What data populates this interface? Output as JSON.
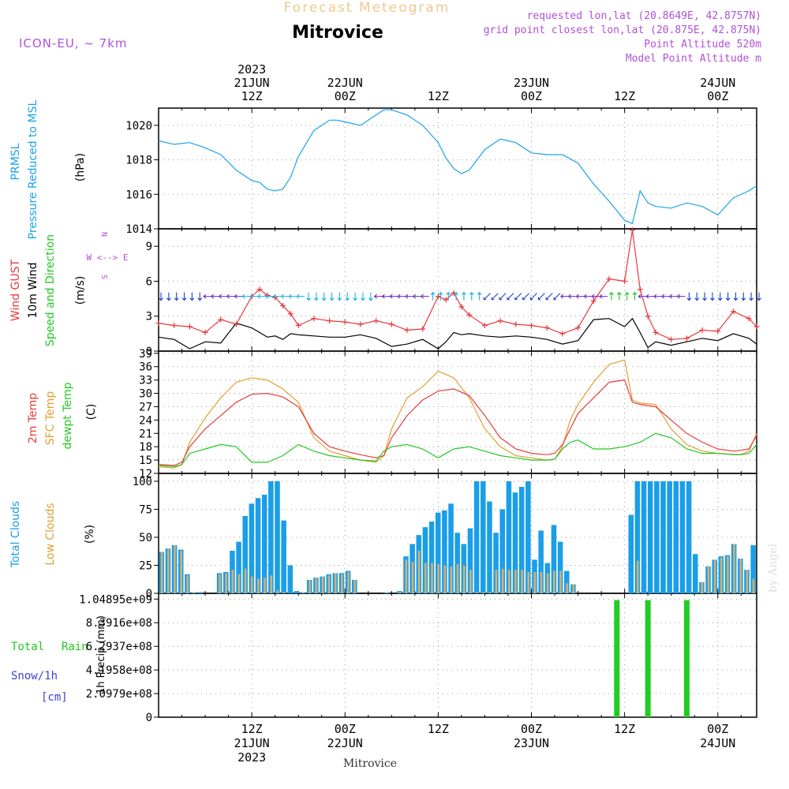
{
  "header": {
    "product": "Forecast Meteogram",
    "location": "Mitrovice",
    "model": "ICON-EU, ~ 7km",
    "requested": "requested lon,lat (20.8649E, 42.8757N)",
    "closest": "grid point closest lon,lat (20.875E, 42.875N)",
    "point_alt": "Point Altitude 520m",
    "model_alt": "Model Point Altitude m",
    "footer": "Mitrovice",
    "watermark": "by Angel"
  },
  "time_axis": {
    "top_ticks": [
      {
        "t": 12,
        "lines": [
          "2023",
          "21JUN",
          "12Z"
        ]
      },
      {
        "t": 24,
        "lines": [
          "22JUN",
          "00Z"
        ]
      },
      {
        "t": 36,
        "lines": [
          "12Z"
        ]
      },
      {
        "t": 48,
        "lines": [
          "23JUN",
          "00Z"
        ]
      },
      {
        "t": 60,
        "lines": [
          "12Z"
        ]
      },
      {
        "t": 72,
        "lines": [
          "24JUN",
          "00Z"
        ]
      }
    ],
    "bottom_ticks": [
      {
        "t": 12,
        "lines": [
          "12Z",
          "21JUN",
          "2023"
        ]
      },
      {
        "t": 24,
        "lines": [
          "00Z",
          "22JUN"
        ]
      },
      {
        "t": 36,
        "lines": [
          "12Z"
        ]
      },
      {
        "t": 48,
        "lines": [
          "00Z",
          "23JUN"
        ]
      },
      {
        "t": 60,
        "lines": [
          "12Z"
        ]
      },
      {
        "t": 72,
        "lines": [
          "00Z",
          "24JUN"
        ]
      }
    ]
  },
  "panels": {
    "pressure": {
      "labels": [
        "PRMSL",
        "Pressure Reduced to MSL",
        "(hPa)"
      ],
      "yticks": [
        "1020",
        "1018",
        "1016",
        "1014"
      ]
    },
    "wind": {
      "labels": [
        "Wind GUST",
        "10m Wind",
        "Speed and Direction",
        "(m/s)"
      ],
      "yticks": [
        "9",
        "6",
        "3",
        "0"
      ],
      "compass": [
        "N",
        "W <--> E",
        "S"
      ]
    },
    "temp": {
      "labels": [
        "2m Temp",
        "SFC Temp",
        "dewpt Temp",
        "(C)"
      ],
      "yticks": [
        "39",
        "36",
        "33",
        "30",
        "27",
        "24",
        "21",
        "18",
        "15",
        "12"
      ]
    },
    "clouds": {
      "labels": [
        "Total Clouds",
        "Low Clouds",
        "(%)"
      ],
      "yticks": [
        "100",
        "75",
        "50",
        "25",
        "0"
      ]
    },
    "precip": {
      "labels": [
        "Total",
        "Rain",
        "Snow/1h",
        "[cm]",
        "1h Precip (mm)"
      ],
      "yticks": [
        "1.04895e+09",
        "8.3916e+08",
        "6.2937e+08",
        "4.1958e+08",
        "2.0979e+08",
        "0"
      ]
    }
  },
  "colors": {
    "pressure": "#1aa3e8",
    "gust": "#e8383c",
    "wind": "#000000",
    "temp2m": "#e83c3c",
    "sfc": "#e0a030",
    "dew": "#22c822",
    "total_clouds": "#1a9ee8",
    "low_clouds": "#d4b070",
    "precip": "#22cc22",
    "label_purple": "#b050d8",
    "title_orange": "#f0c890"
  },
  "chart_data": [
    {
      "type": "line",
      "title": "PRMSL",
      "ylabel": "hPa",
      "ylim": [
        1014,
        1021
      ],
      "x_hours": [
        0,
        2,
        4,
        6,
        8,
        10,
        12,
        13,
        14,
        15,
        16,
        17,
        18,
        20,
        22,
        23,
        24,
        26,
        28,
        29,
        30,
        32,
        34,
        36,
        37,
        38,
        39,
        40,
        42,
        44,
        46,
        48,
        50,
        52,
        54,
        56,
        58,
        60,
        61,
        62,
        63,
        64,
        66,
        68,
        70,
        72,
        74,
        76,
        77
      ],
      "series": [
        {
          "values": [
            1019.1,
            1018.9,
            1019.0,
            1018.7,
            1018.3,
            1017.4,
            1016.8,
            1016.7,
            1016.3,
            1016.2,
            1016.3,
            1017.0,
            1018.2,
            1019.7,
            1020.3,
            1020.3,
            1020.2,
            1020.0,
            1020.6,
            1020.9,
            1020.9,
            1020.6,
            1020.0,
            1019.0,
            1018.1,
            1017.5,
            1017.2,
            1017.4,
            1018.6,
            1019.2,
            1019.0,
            1018.4,
            1018.3,
            1018.3,
            1017.8,
            1016.6,
            1015.6,
            1014.5,
            1014.3,
            1016.2,
            1015.5,
            1015.3,
            1015.2,
            1015.5,
            1015.3,
            1014.8,
            1015.8,
            1016.2,
            1016.5
          ]
        }
      ]
    },
    {
      "type": "line",
      "title": "Wind GUST / 10m Wind",
      "ylabel": "m/s",
      "ylim": [
        0,
        10.5
      ],
      "x_hours": [
        0,
        2,
        4,
        6,
        8,
        10,
        12,
        13,
        14,
        15,
        16,
        17,
        18,
        20,
        22,
        24,
        26,
        28,
        30,
        32,
        34,
        36,
        37,
        38,
        39,
        40,
        42,
        44,
        46,
        48,
        50,
        52,
        54,
        56,
        58,
        60,
        61,
        62,
        63,
        64,
        66,
        68,
        70,
        72,
        74,
        76,
        77
      ],
      "series": [
        {
          "name": "Wind GUST",
          "values": [
            2.4,
            2.2,
            2.1,
            1.6,
            2.7,
            2.3,
            4.7,
            5.3,
            4.8,
            4.6,
            3.9,
            3.2,
            2.2,
            2.8,
            2.6,
            2.5,
            2.3,
            2.6,
            2.3,
            1.8,
            1.9,
            4.7,
            4.4,
            5.0,
            3.8,
            3.1,
            2.2,
            2.6,
            2.3,
            2.2,
            2.0,
            1.5,
            2.0,
            4.3,
            6.2,
            6.0,
            10.4,
            5.3,
            3.0,
            1.6,
            1.0,
            1.1,
            1.8,
            1.7,
            3.4,
            2.8,
            2.1
          ]
        },
        {
          "name": "10m Wind",
          "values": [
            1.2,
            1.0,
            0.2,
            0.8,
            0.7,
            2.4,
            2.0,
            1.6,
            1.2,
            1.3,
            1.0,
            1.5,
            1.4,
            1.3,
            1.2,
            1.2,
            1.4,
            1.1,
            0.4,
            0.6,
            1.0,
            0.2,
            0.8,
            1.6,
            1.4,
            1.5,
            1.3,
            1.2,
            1.3,
            1.2,
            1.0,
            0.6,
            0.9,
            2.7,
            2.8,
            2.1,
            2.8,
            1.6,
            0.3,
            0.8,
            0.5,
            0.8,
            1.1,
            0.9,
            1.5,
            1.1,
            0.6
          ]
        }
      ]
    },
    {
      "type": "line",
      "title": "Temperatures",
      "ylabel": "C",
      "ylim": [
        12,
        39.5
      ],
      "x_hours": [
        0,
        2,
        3,
        4,
        6,
        8,
        10,
        12,
        14,
        16,
        18,
        20,
        22,
        24,
        26,
        28,
        29,
        30,
        32,
        34,
        36,
        38,
        40,
        42,
        44,
        46,
        48,
        50,
        51,
        52,
        53,
        54,
        56,
        58,
        60,
        61,
        62,
        64,
        66,
        68,
        70,
        72,
        74,
        75,
        76,
        77
      ],
      "series": [
        {
          "name": "2m Temp",
          "values": [
            14.0,
            13.8,
            14.5,
            18.0,
            22.0,
            25.0,
            28.0,
            29.8,
            30.0,
            29.2,
            27.0,
            21.0,
            18.0,
            17.0,
            16.2,
            15.5,
            16.0,
            20.0,
            25.0,
            28.5,
            30.5,
            31.0,
            29.5,
            25.0,
            20.0,
            17.5,
            16.5,
            16.2,
            16.5,
            18.5,
            22.0,
            25.5,
            29.0,
            32.5,
            33.0,
            28.0,
            27.5,
            27.0,
            24.0,
            21.0,
            19.0,
            17.5,
            17.0,
            17.2,
            17.5,
            20.5
          ]
        },
        {
          "name": "SFC Temp",
          "values": [
            13.5,
            13.2,
            14.0,
            19.0,
            24.5,
            29.0,
            32.5,
            33.5,
            33.0,
            31.0,
            28.0,
            20.0,
            17.0,
            16.0,
            15.0,
            14.5,
            16.0,
            22.0,
            29.0,
            31.5,
            35.0,
            33.5,
            29.0,
            22.0,
            18.0,
            16.0,
            15.5,
            15.0,
            15.2,
            18.0,
            24.0,
            27.5,
            32.5,
            36.5,
            37.5,
            28.5,
            27.8,
            27.5,
            22.0,
            18.5,
            17.0,
            16.5,
            16.3,
            16.3,
            17.0,
            21.0
          ]
        },
        {
          "name": "dewpt Temp",
          "values": [
            13.8,
            13.5,
            14.0,
            16.5,
            17.5,
            18.5,
            18.0,
            14.5,
            14.5,
            16.0,
            18.5,
            17.0,
            16.0,
            15.5,
            15.0,
            14.8,
            17.0,
            18.0,
            18.5,
            17.5,
            15.5,
            17.5,
            18.0,
            17.0,
            16.0,
            15.5,
            15.0,
            15.0,
            15.2,
            17.5,
            19.0,
            19.5,
            17.5,
            17.5,
            18.0,
            18.5,
            19.0,
            21.0,
            20.0,
            17.5,
            16.5,
            16.5,
            16.2,
            16.2,
            16.5,
            18.5
          ]
        }
      ]
    },
    {
      "type": "bar",
      "title": "Clouds",
      "ylabel": "%",
      "ylim": [
        0,
        100
      ],
      "series": [
        {
          "name": "Total Clouds",
          "values": [
            37,
            40,
            43,
            39,
            17,
            1,
            1,
            0,
            0,
            18,
            19,
            38,
            46,
            69,
            80,
            85,
            88,
            100,
            100,
            65,
            25,
            2,
            1,
            12,
            14,
            15,
            17,
            18,
            18,
            20,
            12,
            0,
            0,
            0,
            0,
            1,
            0,
            2,
            33,
            44,
            52,
            59,
            64,
            72,
            74,
            80,
            54,
            44,
            58,
            100,
            100,
            82,
            54,
            75,
            100,
            90,
            95,
            100,
            30,
            56,
            27,
            61,
            46,
            20,
            8,
            0,
            0,
            0,
            0,
            0,
            0,
            0,
            0,
            70,
            100,
            100,
            100,
            100,
            100,
            100,
            100,
            100,
            100,
            35,
            10,
            24,
            30,
            33,
            34,
            44,
            31,
            21,
            43
          ]
        },
        {
          "name": "Low Clouds",
          "values": [
            37,
            40,
            43,
            38,
            16,
            1,
            0,
            0,
            0,
            17,
            18,
            21,
            17,
            22,
            15,
            13,
            14,
            16,
            3,
            1,
            0,
            0,
            1,
            12,
            14,
            15,
            16,
            18,
            17,
            19,
            12,
            0,
            0,
            0,
            0,
            1,
            0,
            1,
            30,
            28,
            38,
            27,
            27,
            26,
            25,
            24,
            26,
            25,
            21,
            1,
            1,
            1,
            21,
            22,
            21,
            21,
            21,
            19,
            19,
            19,
            18,
            20,
            20,
            9,
            8,
            0,
            0,
            0,
            0,
            0,
            0,
            0,
            0,
            0,
            29,
            0,
            0,
            0,
            0,
            0,
            0,
            0,
            0,
            0,
            10,
            24,
            30,
            32,
            33,
            44,
            31,
            21,
            13
          ]
        }
      ]
    },
    {
      "type": "bar",
      "title": "1h Precip",
      "ylabel": "1h Precip (mm)",
      "ylim": [
        0,
        1048950000
      ],
      "x_hours": [
        59,
        63,
        68
      ],
      "series": [
        {
          "name": "Total Rain",
          "values": [
            1040000000,
            1040000000,
            1040000000
          ]
        }
      ]
    }
  ]
}
